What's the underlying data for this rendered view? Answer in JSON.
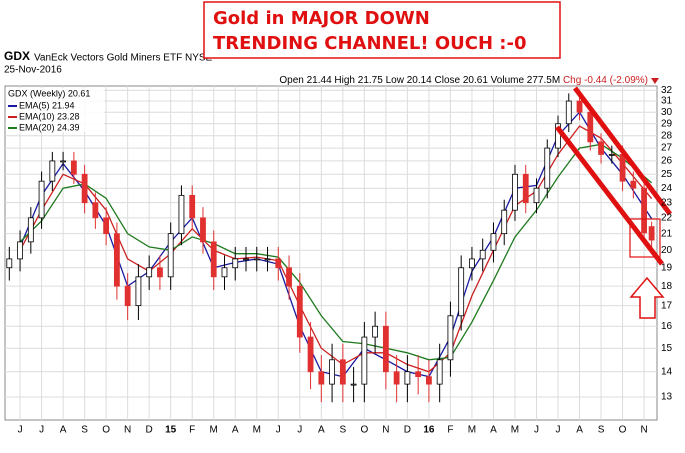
{
  "chart_data": {
    "type": "candlestick",
    "title": "GDX",
    "subtitle": "VanEck Vectors Gold Miners ETF NYSE",
    "date": "25-Nov-2016",
    "quote": [
      "Open 21.44",
      "High 21.75",
      "Low 20.14",
      "Close 20.61",
      "Volume 277.5M"
    ],
    "change": "Chg -0.44 (-2.09%)",
    "annotation": [
      "Gold in MAJOR DOWN",
      "TRENDING CHANNEL! OUCH :-0"
    ],
    "price_name": "GDX (Weekly) 20.61",
    "up_color": "#000000",
    "down_color": "#e03030",
    "log_scale": true,
    "grid": true,
    "x": [
      -0.5,
      0,
      0.5,
      1,
      1.5,
      2,
      2.5,
      3,
      3.5,
      4,
      4.5,
      5,
      5.5,
      6,
      6.5,
      7,
      7.5,
      8,
      8.5,
      9,
      9.5,
      10,
      10.5,
      11,
      11.5,
      12,
      12.5,
      13,
      13.5,
      14,
      14.5,
      15,
      15.5,
      16,
      16.5,
      17,
      17.5,
      18,
      18.5,
      19,
      19.5,
      20,
      20.5,
      21,
      21.5,
      22,
      22.5,
      23,
      23.5,
      24,
      24.5,
      25,
      25.5,
      26,
      26.5,
      27,
      27.5,
      28,
      28.5,
      29,
      29.35
    ],
    "open": [
      19,
      19.5,
      20.5,
      22,
      24.5,
      26,
      26,
      25,
      23,
      22,
      21,
      18,
      17,
      18.5,
      19,
      18.5,
      21,
      23.5,
      22,
      20.5,
      18.5,
      19,
      19.5,
      19.5,
      19.5,
      19.5,
      19,
      18,
      15.5,
      14,
      13.5,
      14.5,
      13.5,
      13.5,
      15.5,
      16,
      14,
      13.5,
      14,
      13.8,
      13.5,
      14.5,
      16.5,
      19,
      19.5,
      20,
      21,
      22.5,
      25,
      23,
      24,
      27,
      29,
      31,
      30,
      27.5,
      26.5,
      26.5,
      24.5,
      24,
      21.44
    ],
    "high": [
      20.2,
      21.2,
      22.7,
      25.2,
      26.7,
      26.7,
      26.7,
      25.7,
      23.7,
      22.7,
      21.7,
      18.7,
      19.2,
      19.7,
      19.7,
      21.7,
      24.2,
      24.2,
      22.7,
      21.2,
      19.7,
      20.2,
      20.2,
      20.2,
      20.2,
      20.2,
      19.7,
      18.7,
      16.2,
      14.7,
      15.2,
      15.2,
      14.2,
      16.2,
      16.7,
      16.7,
      14.7,
      14.7,
      14.7,
      14.5,
      15.2,
      17.2,
      19.7,
      20.2,
      20.7,
      21.7,
      23.2,
      25.7,
      25.7,
      24.7,
      27.7,
      29.7,
      31.7,
      31.7,
      30.7,
      28.2,
      27.2,
      27.2,
      25.2,
      24.7,
      21.75
    ],
    "low": [
      18.3,
      18.8,
      19.8,
      21.3,
      23.8,
      25.3,
      24.3,
      22.3,
      21.3,
      20.3,
      17.3,
      16.3,
      16.3,
      17.8,
      17.8,
      17.8,
      20.3,
      21.3,
      19.8,
      17.8,
      17.8,
      18.3,
      18.8,
      18.8,
      18.8,
      18.3,
      17.3,
      14.8,
      13.3,
      12.8,
      12.8,
      12.8,
      12.8,
      12.8,
      14.8,
      13.3,
      12.8,
      12.8,
      13.1,
      12.8,
      12.8,
      13.8,
      15.8,
      18.3,
      18.8,
      19.3,
      20.3,
      21.8,
      22.3,
      22.3,
      23.3,
      26.3,
      28.3,
      29.3,
      26.8,
      25.8,
      25.8,
      23.8,
      23.3,
      20.35,
      20.14
    ],
    "close": [
      19.5,
      20.5,
      22,
      24.5,
      26,
      26,
      25,
      23,
      22,
      21,
      18,
      17,
      18.5,
      19,
      18.5,
      21,
      23.5,
      22,
      20.5,
      18.5,
      19,
      19.5,
      19.5,
      19.5,
      19.5,
      19,
      18,
      15.5,
      14,
      13.5,
      14.5,
      13.5,
      13.5,
      15.5,
      16,
      14,
      13.5,
      14,
      13.8,
      13.5,
      14.5,
      16.5,
      19,
      19.5,
      20,
      21,
      22.5,
      25,
      23,
      24,
      27,
      29,
      31,
      30,
      27.5,
      26.5,
      26.5,
      24.5,
      24,
      21.05,
      20.61
    ],
    "overlays": {
      "x": [
        0,
        1,
        2,
        3,
        4,
        5,
        6,
        7,
        8,
        9,
        10,
        11,
        12,
        13,
        14,
        15,
        16,
        17,
        18,
        19,
        20,
        21,
        22,
        23,
        24,
        25,
        26,
        27,
        28,
        29.35
      ],
      "series": [
        {
          "name": "EMA(5) 21.94",
          "color": "#1a1aa0",
          "values": [
            20.2,
            23.5,
            25.8,
            23.8,
            21.5,
            18,
            18.8,
            20.5,
            22,
            19,
            19.3,
            19.5,
            19.2,
            16,
            14,
            13.8,
            15,
            14.5,
            14,
            13.8,
            15.5,
            18.8,
            20.8,
            24,
            24.2,
            28,
            30,
            27,
            25,
            21.94
          ]
        },
        {
          "name": "EMA(10) 23.28",
          "color": "#cc2020",
          "values": [
            20,
            22.5,
            25,
            24.3,
            22.5,
            19.5,
            18.8,
            19.8,
            21.3,
            20,
            19.5,
            19.6,
            19.4,
            17,
            15,
            14.3,
            14.8,
            14.8,
            14.3,
            14,
            14.8,
            17.5,
            20,
            22.8,
            23.8,
            26.5,
            28.8,
            27.8,
            25.8,
            23.28
          ]
        },
        {
          "name": "EMA(20) 24.39",
          "color": "#1e7a1e",
          "values": [
            20.5,
            21.8,
            24,
            24.3,
            23.3,
            21,
            20.2,
            20,
            20.8,
            20.4,
            19.8,
            19.8,
            19.6,
            18.2,
            16.5,
            15.3,
            15.2,
            15,
            14.8,
            14.5,
            14.6,
            16.2,
            18.3,
            20.8,
            22.5,
            24.8,
            27,
            27.3,
            26.2,
            24.39
          ]
        }
      ]
    },
    "xlim": [
      -0.7,
      29.6
    ],
    "xticks": [
      {
        "value": 0,
        "label": "J"
      },
      {
        "value": 1,
        "label": "J"
      },
      {
        "value": 2,
        "label": "A"
      },
      {
        "value": 3,
        "label": "S"
      },
      {
        "value": 4,
        "label": "O"
      },
      {
        "value": 5,
        "label": "N"
      },
      {
        "value": 6,
        "label": "D"
      },
      {
        "value": 7,
        "label": "15"
      },
      {
        "value": 8,
        "label": "F"
      },
      {
        "value": 9,
        "label": "M"
      },
      {
        "value": 10,
        "label": "A"
      },
      {
        "value": 11,
        "label": "M"
      },
      {
        "value": 12,
        "label": "J"
      },
      {
        "value": 13,
        "label": "J"
      },
      {
        "value": 14,
        "label": "A"
      },
      {
        "value": 15,
        "label": "S"
      },
      {
        "value": 16,
        "label": "O"
      },
      {
        "value": 17,
        "label": "N"
      },
      {
        "value": 18,
        "label": "D"
      },
      {
        "value": 19,
        "label": "16"
      },
      {
        "value": 20,
        "label": "F"
      },
      {
        "value": 21,
        "label": "M"
      },
      {
        "value": 22,
        "label": "A"
      },
      {
        "value": 23,
        "label": "M"
      },
      {
        "value": 24,
        "label": "J"
      },
      {
        "value": 25,
        "label": "J"
      },
      {
        "value": 26,
        "label": "A"
      },
      {
        "value": 27,
        "label": "S"
      },
      {
        "value": 28,
        "label": "O"
      },
      {
        "value": 29,
        "label": "N"
      }
    ],
    "ylim": [
      12.15,
      32.4
    ],
    "yticks": [
      13,
      14,
      15,
      16,
      17,
      18,
      19,
      20,
      21,
      22,
      23,
      24,
      25,
      26,
      27,
      28,
      29,
      30,
      31,
      32
    ]
  }
}
